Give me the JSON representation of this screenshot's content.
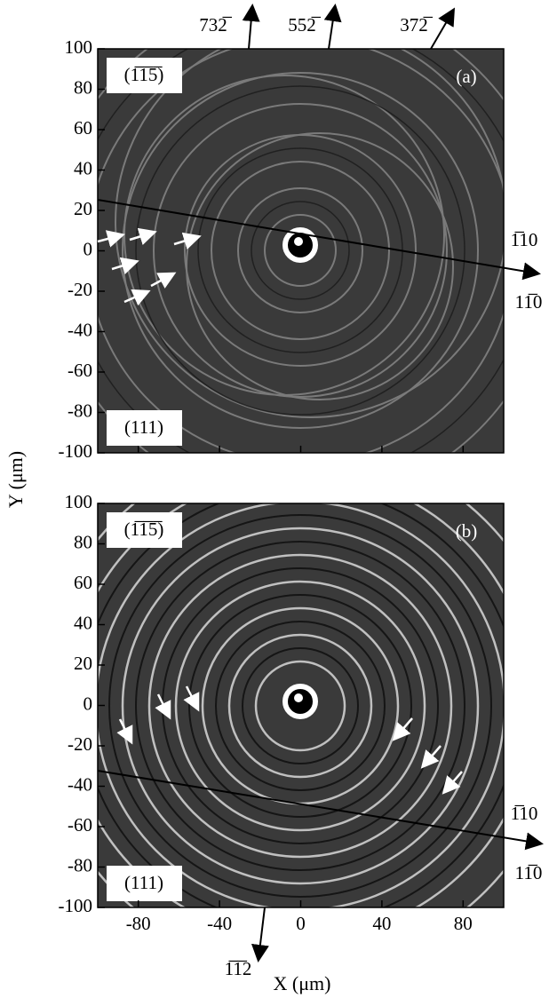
{
  "figure": {
    "x_axis_label": "X (μm)",
    "y_axis_label": "Y (μm)",
    "xlim": [
      -100,
      100
    ],
    "ylim": [
      -100,
      100
    ],
    "xticks": [
      -80,
      -40,
      0,
      40,
      80
    ],
    "yticks": [
      -100,
      -80,
      -60,
      -40,
      -20,
      0,
      20,
      40,
      60,
      80,
      100
    ],
    "top_directions": [
      "732̅",
      "552̅",
      "372̅"
    ],
    "bottom_direction": "1̅1̅2",
    "panels": [
      {
        "label": "(a)",
        "top_face": "(1̅1̅5̅)",
        "bottom_face": "(111)",
        "line_upper": "1̅10",
        "line_lower": "11̅0"
      },
      {
        "label": "(b)",
        "top_face": "(1̅1̅5̅)",
        "bottom_face": "(111)",
        "line_upper": "1̅10",
        "line_lower": "11̅0"
      }
    ]
  }
}
